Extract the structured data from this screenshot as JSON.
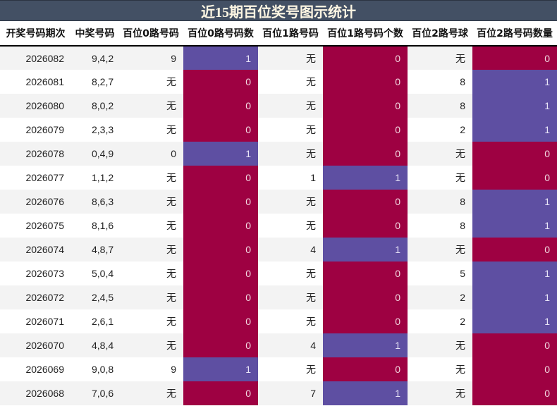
{
  "title": "近15期百位奖号图示统计",
  "colors": {
    "title_bg": "#435064",
    "title_fg": "#fdf6e3",
    "count_one": "#5e4fa2",
    "count_zero": "#9e0142",
    "row_stripe": "#f3f3f3"
  },
  "columns": [
    "开奖号码期次",
    "中奖号码",
    "百位0路号码",
    "百位0路号码数",
    "百位1路号码",
    "百位1路号码个数",
    "百位2路号球",
    "百位2路号码数量"
  ],
  "rows": [
    {
      "period": "2026082",
      "numbers": "9,4,2",
      "r0": "9",
      "r0_count": "1",
      "r1": "无",
      "r1_count": "0",
      "r2": "无",
      "r2_count": "0"
    },
    {
      "period": "2026081",
      "numbers": "8,2,7",
      "r0": "无",
      "r0_count": "0",
      "r1": "无",
      "r1_count": "0",
      "r2": "8",
      "r2_count": "1"
    },
    {
      "period": "2026080",
      "numbers": "8,0,2",
      "r0": "无",
      "r0_count": "0",
      "r1": "无",
      "r1_count": "0",
      "r2": "8",
      "r2_count": "1"
    },
    {
      "period": "2026079",
      "numbers": "2,3,3",
      "r0": "无",
      "r0_count": "0",
      "r1": "无",
      "r1_count": "0",
      "r2": "2",
      "r2_count": "1"
    },
    {
      "period": "2026078",
      "numbers": "0,4,9",
      "r0": "0",
      "r0_count": "1",
      "r1": "无",
      "r1_count": "0",
      "r2": "无",
      "r2_count": "0"
    },
    {
      "period": "2026077",
      "numbers": "1,1,2",
      "r0": "无",
      "r0_count": "0",
      "r1": "1",
      "r1_count": "1",
      "r2": "无",
      "r2_count": "0"
    },
    {
      "period": "2026076",
      "numbers": "8,6,3",
      "r0": "无",
      "r0_count": "0",
      "r1": "无",
      "r1_count": "0",
      "r2": "8",
      "r2_count": "1"
    },
    {
      "period": "2026075",
      "numbers": "8,1,6",
      "r0": "无",
      "r0_count": "0",
      "r1": "无",
      "r1_count": "0",
      "r2": "8",
      "r2_count": "1"
    },
    {
      "period": "2026074",
      "numbers": "4,8,7",
      "r0": "无",
      "r0_count": "0",
      "r1": "4",
      "r1_count": "1",
      "r2": "无",
      "r2_count": "0"
    },
    {
      "period": "2026073",
      "numbers": "5,0,4",
      "r0": "无",
      "r0_count": "0",
      "r1": "无",
      "r1_count": "0",
      "r2": "5",
      "r2_count": "1"
    },
    {
      "period": "2026072",
      "numbers": "2,4,5",
      "r0": "无",
      "r0_count": "0",
      "r1": "无",
      "r1_count": "0",
      "r2": "2",
      "r2_count": "1"
    },
    {
      "period": "2026071",
      "numbers": "2,6,1",
      "r0": "无",
      "r0_count": "0",
      "r1": "无",
      "r1_count": "0",
      "r2": "2",
      "r2_count": "1"
    },
    {
      "period": "2026070",
      "numbers": "4,8,4",
      "r0": "无",
      "r0_count": "0",
      "r1": "4",
      "r1_count": "1",
      "r2": "无",
      "r2_count": "0"
    },
    {
      "period": "2026069",
      "numbers": "9,0,8",
      "r0": "9",
      "r0_count": "1",
      "r1": "无",
      "r1_count": "0",
      "r2": "无",
      "r2_count": "0"
    },
    {
      "period": "2026068",
      "numbers": "7,0,6",
      "r0": "无",
      "r0_count": "0",
      "r1": "7",
      "r1_count": "1",
      "r2": "无",
      "r2_count": "0"
    }
  ]
}
